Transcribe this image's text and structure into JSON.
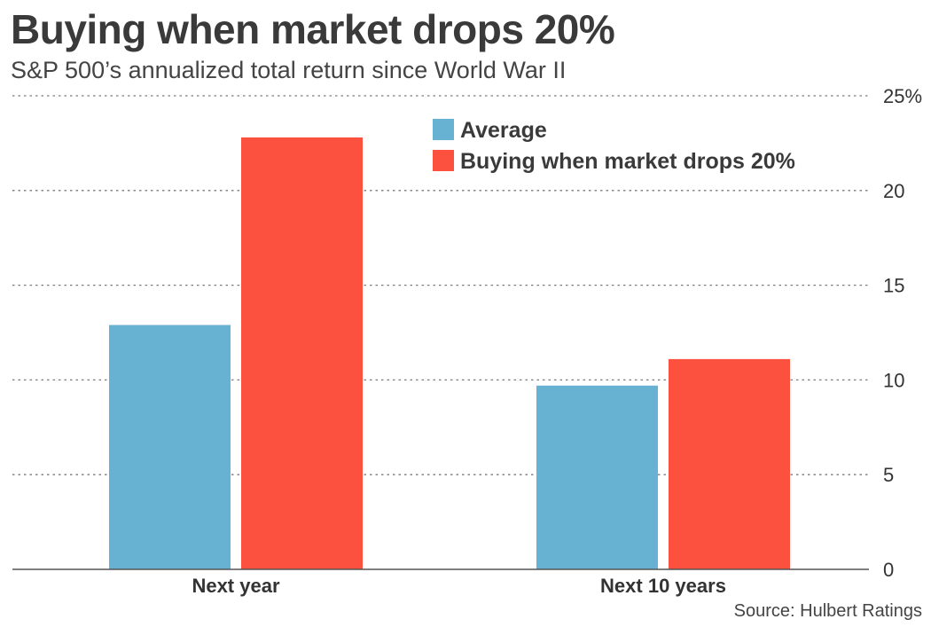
{
  "title": "Buying when market drops 20%",
  "subtitle": "S&P 500’s annualized total return since World War II",
  "source": "Source: Hulbert Ratings",
  "colors": {
    "average": "#67b1d2",
    "drop": "#fb513e",
    "grid": "#7a7a7a",
    "text": "#333333"
  },
  "chart_data": {
    "type": "bar",
    "categories": [
      "Next year",
      "Next 10 years"
    ],
    "series": [
      {
        "name": "Average",
        "values": [
          12.9,
          9.7
        ],
        "color": "#67b1d2"
      },
      {
        "name": "Buying when market drops 20%",
        "values": [
          22.8,
          11.1
        ],
        "color": "#fb513e"
      }
    ],
    "y_ticks": [
      0,
      5,
      10,
      15,
      20,
      25
    ],
    "y_tick_labels": [
      "0",
      "5",
      "10",
      "15",
      "20",
      "25%"
    ],
    "ylim": [
      0,
      25
    ],
    "grid": true,
    "y_axis_side": "right",
    "legend_position": "top-center"
  }
}
